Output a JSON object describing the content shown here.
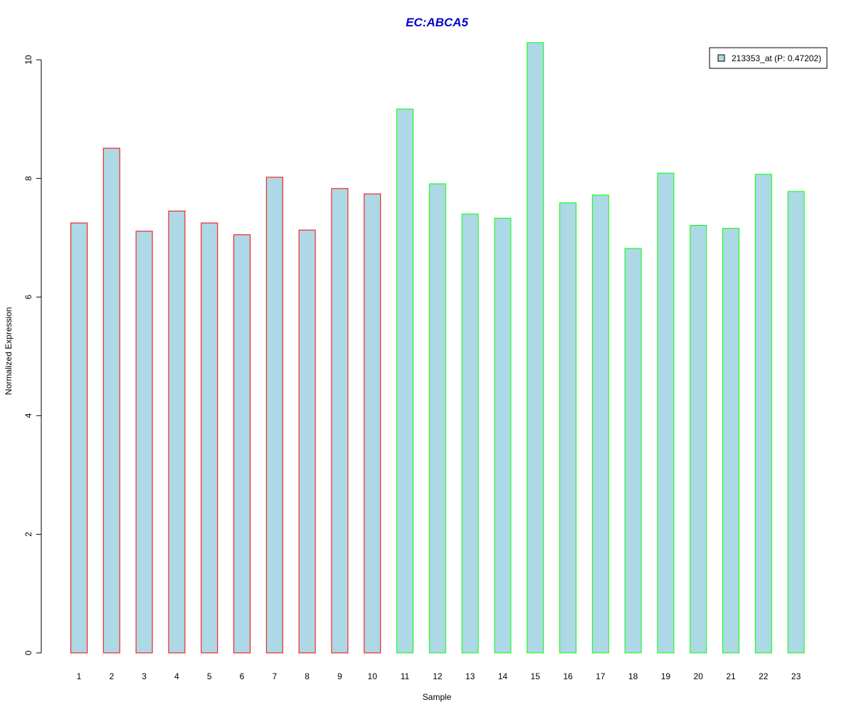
{
  "chart_data": {
    "type": "bar",
    "title": "EC:ABCA5",
    "xlabel": "Sample",
    "ylabel": "Normalized Expression",
    "ylim": [
      0,
      10.3
    ],
    "yticks": [
      0,
      2,
      4,
      6,
      8,
      10
    ],
    "grid": false,
    "legend_placement": "top-right",
    "categories": [
      "1",
      "2",
      "3",
      "4",
      "5",
      "6",
      "7",
      "8",
      "9",
      "10",
      "11",
      "12",
      "13",
      "14",
      "15",
      "16",
      "17",
      "18",
      "19",
      "20",
      "21",
      "22",
      "23"
    ],
    "series": [
      {
        "name": "213353_at (P: 0.47202)",
        "values": [
          7.25,
          8.51,
          7.11,
          7.45,
          7.25,
          7.05,
          8.02,
          7.13,
          7.83,
          7.74,
          9.17,
          7.91,
          7.4,
          7.33,
          10.29,
          7.59,
          7.72,
          6.82,
          8.09,
          7.21,
          7.16,
          8.07,
          7.78
        ],
        "fill": "#ADD8E6",
        "borders": [
          "#FF0000",
          "#FF0000",
          "#FF0000",
          "#FF0000",
          "#FF0000",
          "#FF0000",
          "#FF0000",
          "#FF0000",
          "#FF0000",
          "#FF0000",
          "#00FF00",
          "#00FF00",
          "#00FF00",
          "#00FF00",
          "#00FF00",
          "#00FF00",
          "#00FF00",
          "#00FF00",
          "#00FF00",
          "#00FF00",
          "#00FF00",
          "#00FF00",
          "#00FF00"
        ]
      }
    ],
    "colors": {
      "title": "#0000CC",
      "group1_border": "#FF0000",
      "group2_border": "#00FF00",
      "bar_fill": "#ADD8E6"
    }
  }
}
